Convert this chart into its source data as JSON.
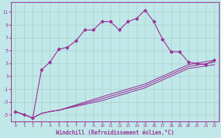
{
  "xlabel": "Windchill (Refroidissement éolien,°C)",
  "bg_color": "#c0e8e8",
  "line_color": "#993399",
  "grid_color": "#aacccc",
  "xlim": [
    -0.5,
    23.5
  ],
  "ylim": [
    -6.0,
    12.5
  ],
  "xticks": [
    0,
    1,
    2,
    3,
    4,
    5,
    6,
    7,
    8,
    9,
    10,
    11,
    12,
    13,
    14,
    15,
    16,
    17,
    18,
    19,
    20,
    21,
    22,
    23
  ],
  "yticks": [
    -5,
    -3,
    -1,
    1,
    3,
    5,
    7,
    9,
    11
  ],
  "main_x": [
    0,
    1,
    2,
    3,
    4,
    5,
    6,
    7,
    8,
    9,
    10,
    11,
    12,
    13,
    14,
    15,
    16,
    17,
    18,
    19,
    20,
    21,
    22,
    23
  ],
  "main_y": [
    -4.5,
    -5.0,
    -5.5,
    2.0,
    3.2,
    5.2,
    5.5,
    6.5,
    8.2,
    8.2,
    9.5,
    9.5,
    8.2,
    9.5,
    10.0,
    11.3,
    9.5,
    6.8,
    4.8,
    4.8,
    3.2,
    3.0,
    2.8,
    3.5
  ],
  "line1_x": [
    0,
    2,
    3,
    4,
    5,
    10,
    15,
    20,
    23
  ],
  "line1_y": [
    -4.5,
    -5.5,
    -4.8,
    -4.5,
    -4.3,
    -2.2,
    -0.2,
    2.8,
    3.5
  ],
  "line2_x": [
    0,
    2,
    3,
    4,
    5,
    10,
    15,
    20,
    23
  ],
  "line2_y": [
    -4.5,
    -5.5,
    -4.8,
    -4.5,
    -4.3,
    -2.5,
    -0.5,
    2.5,
    3.2
  ],
  "line3_x": [
    0,
    2,
    3,
    4,
    5,
    10,
    15,
    20,
    23
  ],
  "line3_y": [
    -4.5,
    -5.5,
    -4.8,
    -4.5,
    -4.3,
    -2.8,
    -0.8,
    2.2,
    2.8
  ]
}
